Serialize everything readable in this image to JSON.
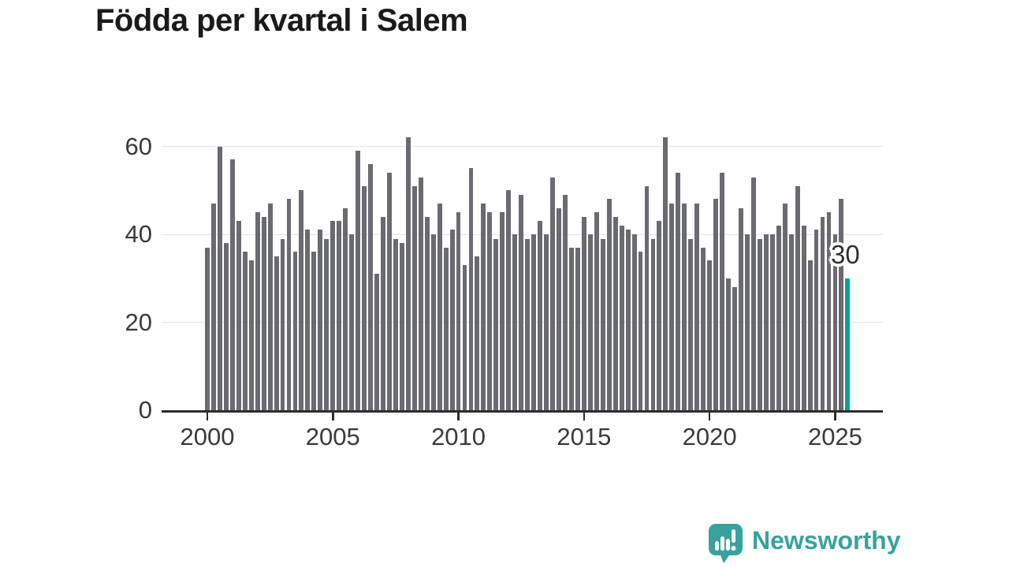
{
  "title": "Födda per kvartal i Salem",
  "colors": {
    "background": "#ffffff",
    "title_text": "#1a1a1a",
    "axis": "#2d2d2d",
    "grid": "#e4e4e4",
    "axis_text": "#3a3a3a",
    "bar": "#6a6a71",
    "highlight": "#00a29c",
    "value_label_text": "#2f2f2f",
    "brand": "#38a39c"
  },
  "chart_data": {
    "type": "bar",
    "title": "Födda per kvartal i Salem",
    "xlabel": "",
    "ylabel": "",
    "ylim": [
      0,
      65
    ],
    "grid": true,
    "legend": "none",
    "y_ticks": [
      0,
      20,
      40,
      60
    ],
    "y_tick_labels": [
      "0",
      "20",
      "40",
      "60"
    ],
    "x_tick_years": [
      2000,
      2005,
      2010,
      2015,
      2020,
      2025
    ],
    "x_tick_labels": [
      "2000",
      "2005",
      "2010",
      "2015",
      "2020",
      "2025"
    ],
    "quarters": [
      "2000 Q1",
      "2000 Q2",
      "2000 Q3",
      "2000 Q4",
      "2001 Q1",
      "2001 Q2",
      "2001 Q3",
      "2001 Q4",
      "2002 Q1",
      "2002 Q2",
      "2002 Q3",
      "2002 Q4",
      "2003 Q1",
      "2003 Q2",
      "2003 Q3",
      "2003 Q4",
      "2004 Q1",
      "2004 Q2",
      "2004 Q3",
      "2004 Q4",
      "2005 Q1",
      "2005 Q2",
      "2005 Q3",
      "2005 Q4",
      "2006 Q1",
      "2006 Q2",
      "2006 Q3",
      "2006 Q4",
      "2007 Q1",
      "2007 Q2",
      "2007 Q3",
      "2007 Q4",
      "2008 Q1",
      "2008 Q2",
      "2008 Q3",
      "2008 Q4",
      "2009 Q1",
      "2009 Q2",
      "2009 Q3",
      "2009 Q4",
      "2010 Q1",
      "2010 Q2",
      "2010 Q3",
      "2010 Q4",
      "2011 Q1",
      "2011 Q2",
      "2011 Q3",
      "2011 Q4",
      "2012 Q1",
      "2012 Q2",
      "2012 Q3",
      "2012 Q4",
      "2013 Q1",
      "2013 Q2",
      "2013 Q3",
      "2013 Q4",
      "2014 Q1",
      "2014 Q2",
      "2014 Q3",
      "2014 Q4",
      "2015 Q1",
      "2015 Q2",
      "2015 Q3",
      "2015 Q4",
      "2016 Q1",
      "2016 Q2",
      "2016 Q3",
      "2016 Q4",
      "2017 Q1",
      "2017 Q2",
      "2017 Q3",
      "2017 Q4",
      "2018 Q1",
      "2018 Q2",
      "2018 Q3",
      "2018 Q4",
      "2019 Q1",
      "2019 Q2",
      "2019 Q3",
      "2019 Q4",
      "2020 Q1",
      "2020 Q2",
      "2020 Q3",
      "2020 Q4",
      "2021 Q1",
      "2021 Q2",
      "2021 Q3",
      "2021 Q4",
      "2022 Q1",
      "2022 Q2",
      "2022 Q3",
      "2022 Q4",
      "2023 Q1",
      "2023 Q2",
      "2023 Q3",
      "2023 Q4",
      "2024 Q1",
      "2024 Q2",
      "2024 Q3",
      "2024 Q4",
      "2025 Q1",
      "2025 Q2",
      "2025 Q3"
    ],
    "values": [
      37,
      47,
      60,
      38,
      57,
      43,
      36,
      34,
      45,
      44,
      47,
      35,
      39,
      48,
      36,
      50,
      41,
      36,
      41,
      39,
      43,
      43,
      46,
      40,
      59,
      51,
      56,
      31,
      44,
      54,
      39,
      38,
      62,
      51,
      53,
      44,
      40,
      47,
      37,
      41,
      45,
      33,
      55,
      35,
      47,
      45,
      39,
      45,
      50,
      40,
      49,
      39,
      40,
      43,
      40,
      53,
      46,
      49,
      37,
      37,
      44,
      40,
      45,
      39,
      48,
      44,
      42,
      41,
      40,
      36,
      51,
      39,
      43,
      62,
      47,
      54,
      47,
      39,
      47,
      37,
      34,
      48,
      54,
      30,
      28,
      46,
      40,
      53,
      39,
      40,
      40,
      42,
      47,
      40,
      51,
      42,
      34,
      41,
      44,
      45,
      40,
      48,
      30
    ],
    "highlight": {
      "index": 102,
      "quarter": "2025 Q3",
      "value": 30,
      "label": "30"
    }
  },
  "footer": {
    "brand": "Newsworthy",
    "logo_icon": "bar-chart-speech-bubble-icon"
  }
}
